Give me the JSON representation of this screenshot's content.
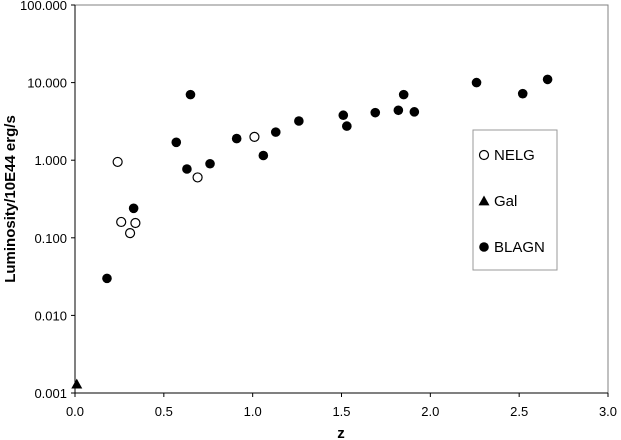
{
  "chart_data": {
    "type": "scatter",
    "title": "",
    "xlabel": "z",
    "ylabel": "Luminosity/10E44 erg/s",
    "xlim": [
      0.0,
      3.0
    ],
    "ylim": [
      0.001,
      100
    ],
    "yscale": "log",
    "grid": false,
    "legend_position": "right",
    "x_ticks": [
      "0.0",
      "0.5",
      "1.0",
      "1.5",
      "2.0",
      "2.5",
      "3.0"
    ],
    "x_tick_values": [
      0.0,
      0.5,
      1.0,
      1.5,
      2.0,
      2.5,
      3.0
    ],
    "y_ticks": [
      "0.001",
      "0.010",
      "0.100",
      "1.000",
      "10.000",
      "100.000"
    ],
    "y_tick_values": [
      0.001,
      0.01,
      0.1,
      1,
      10,
      100
    ],
    "series": [
      {
        "name": "NELG",
        "marker": "open-circle",
        "color": "#000000",
        "points": [
          {
            "x": 0.24,
            "y": 0.95
          },
          {
            "x": 0.26,
            "y": 0.16
          },
          {
            "x": 0.31,
            "y": 0.115
          },
          {
            "x": 0.34,
            "y": 0.155
          },
          {
            "x": 0.69,
            "y": 0.6
          },
          {
            "x": 1.01,
            "y": 2.0
          }
        ]
      },
      {
        "name": "Gal",
        "marker": "filled-triangle",
        "color": "#000000",
        "points": [
          {
            "x": 0.01,
            "y": 0.0013
          }
        ]
      },
      {
        "name": "BLAGN",
        "marker": "filled-circle",
        "color": "#000000",
        "points": [
          {
            "x": 0.18,
            "y": 0.03
          },
          {
            "x": 0.33,
            "y": 0.24
          },
          {
            "x": 0.57,
            "y": 1.7
          },
          {
            "x": 0.63,
            "y": 0.77
          },
          {
            "x": 0.65,
            "y": 7.0
          },
          {
            "x": 0.76,
            "y": 0.9
          },
          {
            "x": 0.91,
            "y": 1.9
          },
          {
            "x": 1.06,
            "y": 1.15
          },
          {
            "x": 1.13,
            "y": 2.3
          },
          {
            "x": 1.26,
            "y": 3.2
          },
          {
            "x": 1.51,
            "y": 3.8
          },
          {
            "x": 1.53,
            "y": 2.75
          },
          {
            "x": 1.69,
            "y": 4.1
          },
          {
            "x": 1.82,
            "y": 4.4
          },
          {
            "x": 1.85,
            "y": 7.0
          },
          {
            "x": 1.91,
            "y": 4.2
          },
          {
            "x": 2.26,
            "y": 10.0
          },
          {
            "x": 2.52,
            "y": 7.2
          },
          {
            "x": 2.66,
            "y": 11.0
          }
        ]
      }
    ]
  }
}
